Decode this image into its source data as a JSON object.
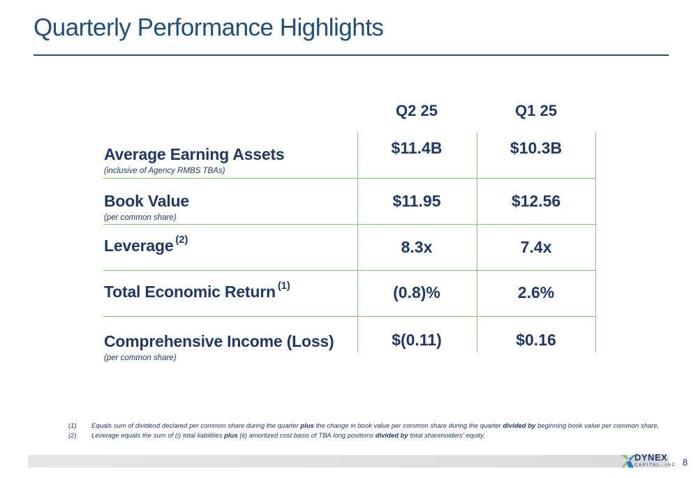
{
  "title": "Quarterly Performance Highlights",
  "columns": [
    "Q2 25",
    "Q1 25"
  ],
  "rows": [
    {
      "label": "Average Earning Assets",
      "sup": "",
      "sub": "(inclusive of Agency RMBS TBAs)",
      "q2": "$11.4B",
      "q1": "$10.3B"
    },
    {
      "label": "Book Value",
      "sup": "",
      "sub": "(per common share)",
      "q2": "$11.95",
      "q1": "$12.56"
    },
    {
      "label": "Leverage",
      "sup": "(2)",
      "sub": "",
      "q2": "8.3x",
      "q1": "7.4x"
    },
    {
      "label": "Total Economic Return",
      "sup": "(1)",
      "sub": "",
      "q2": "(0.8)%",
      "q1": "2.6%"
    },
    {
      "label": "Comprehensive Income (Loss)",
      "sup": "",
      "sub": "(per common share)",
      "q2": "$(0.11)",
      "q1": "$0.16"
    }
  ],
  "footnotes": [
    {
      "num": "(1)",
      "parts": [
        "Equals sum of dividend declared per common share during the quarter ",
        "plus",
        " the change in book value per common share during the quarter ",
        "divided by",
        " beginning book value per common share."
      ]
    },
    {
      "num": "(2)",
      "parts": [
        "Leverage equals the sum of (i) total liabilities ",
        "plus",
        " (ii) amortized cost basis of TBA long positions ",
        "divided by",
        " total shareholders' equity."
      ]
    }
  ],
  "logo": {
    "name": "DYNEX",
    "sub": "CAPITAL, INC."
  },
  "page_number": "8",
  "colors": {
    "navy": "#1f3864",
    "title_blue": "#1f4e79",
    "grid_green": "#8dc06a",
    "logo_green": "#8dc06a",
    "logo_blue": "#2e75b6"
  }
}
